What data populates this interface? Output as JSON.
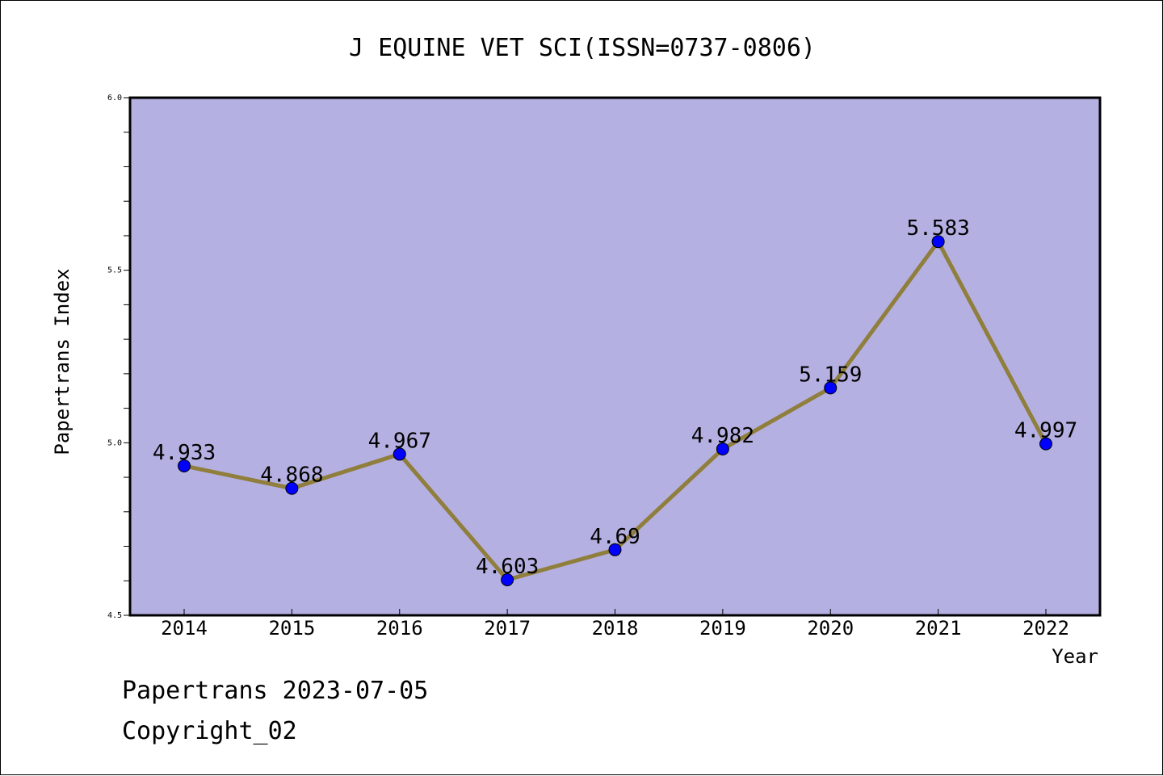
{
  "chart_data": {
    "type": "line",
    "title": "J EQUINE VET SCI(ISSN=0737-0806)",
    "xlabel": "Year",
    "ylabel": "Papertrans Index",
    "categories": [
      "2014",
      "2015",
      "2016",
      "2017",
      "2018",
      "2019",
      "2020",
      "2021",
      "2022"
    ],
    "series": [
      {
        "values": [
          4.933,
          4.868,
          4.967,
          4.603,
          4.69,
          4.982,
          5.159,
          5.583,
          4.997
        ]
      }
    ],
    "data_labels": [
      "4.933",
      "4.868",
      "4.967",
      "4.603",
      "4.69",
      "4.982",
      "5.159",
      "5.583",
      "4.997"
    ],
    "ylim": [
      4.5,
      6.0
    ],
    "y_ticks": [
      "4.5",
      "5.0",
      "5.5",
      "6.0"
    ],
    "grid": false,
    "colors": {
      "plot_background": "#b5b0e2",
      "line": "#8f7e3c",
      "marker": "#0000ff"
    }
  },
  "footer": {
    "date_line": "Papertrans 2023-07-05",
    "copyright": "Copyright_02"
  }
}
